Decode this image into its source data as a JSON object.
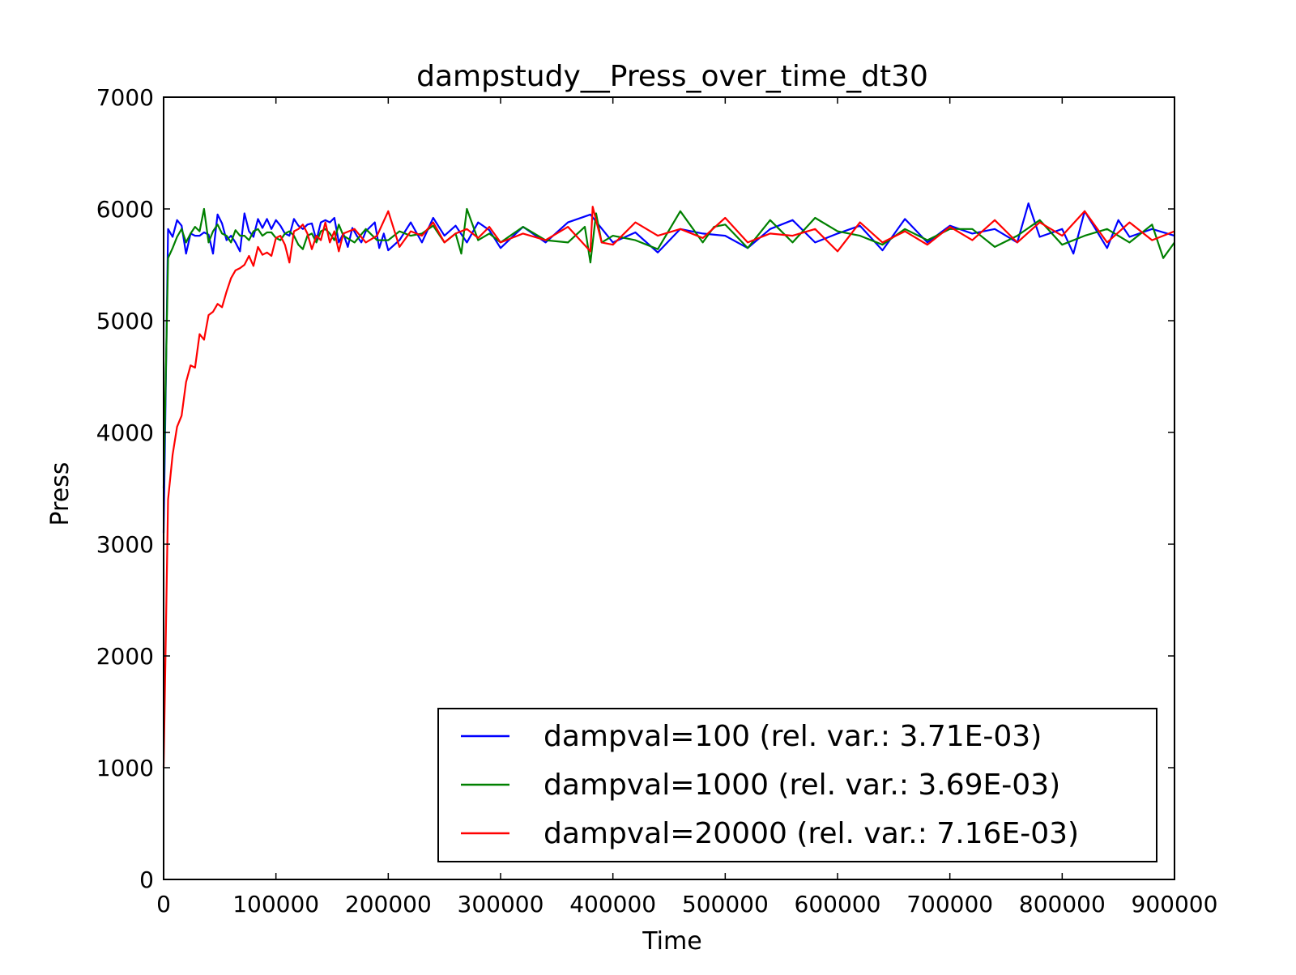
{
  "chart_data": {
    "type": "line",
    "title": "dampstudy__Press_over_time_dt30",
    "xlabel": "Time",
    "ylabel": "Press",
    "xlim": [
      0,
      900000
    ],
    "ylim": [
      0,
      7000
    ],
    "xticks": [
      0,
      100000,
      200000,
      300000,
      400000,
      500000,
      600000,
      700000,
      800000,
      900000
    ],
    "yticks": [
      0,
      1000,
      2000,
      3000,
      4000,
      5000,
      6000,
      7000
    ],
    "grid": false,
    "legend_position": "lower-right",
    "series": [
      {
        "name": "dampval=100 (rel. var.: 3.71E-03)",
        "color": "#0000ff",
        "x": [
          0,
          4000,
          8000,
          12000,
          16000,
          20000,
          24000,
          28000,
          32000,
          36000,
          40000,
          44000,
          48000,
          52000,
          56000,
          60000,
          64000,
          68000,
          72000,
          76000,
          80000,
          84000,
          88000,
          92000,
          96000,
          100000,
          104000,
          108000,
          112000,
          116000,
          120000,
          124000,
          128000,
          132000,
          136000,
          140000,
          144000,
          148000,
          152000,
          156000,
          160000,
          164000,
          168000,
          172000,
          176000,
          180000,
          184000,
          188000,
          192000,
          196000,
          200000,
          210000,
          220000,
          230000,
          240000,
          250000,
          260000,
          270000,
          280000,
          290000,
          300000,
          320000,
          340000,
          360000,
          380000,
          400000,
          420000,
          440000,
          460000,
          480000,
          500000,
          520000,
          540000,
          560000,
          580000,
          600000,
          620000,
          640000,
          660000,
          680000,
          700000,
          720000,
          740000,
          760000,
          770000,
          780000,
          800000,
          810000,
          820000,
          840000,
          850000,
          860000,
          880000,
          900000
        ],
        "y": [
          3100,
          5820,
          5750,
          5900,
          5850,
          5600,
          5780,
          5760,
          5760,
          5790,
          5770,
          5600,
          5950,
          5870,
          5720,
          5760,
          5700,
          5620,
          5960,
          5800,
          5750,
          5910,
          5830,
          5910,
          5820,
          5900,
          5850,
          5780,
          5760,
          5910,
          5850,
          5820,
          5860,
          5870,
          5720,
          5880,
          5900,
          5880,
          5920,
          5700,
          5780,
          5660,
          5830,
          5760,
          5700,
          5800,
          5840,
          5880,
          5650,
          5780,
          5630,
          5720,
          5880,
          5700,
          5920,
          5760,
          5850,
          5700,
          5880,
          5810,
          5650,
          5840,
          5700,
          5880,
          5950,
          5700,
          5790,
          5610,
          5820,
          5780,
          5760,
          5650,
          5820,
          5900,
          5700,
          5780,
          5850,
          5630,
          5910,
          5700,
          5850,
          5780,
          5820,
          5700,
          6050,
          5750,
          5820,
          5600,
          5980,
          5650,
          5900,
          5750,
          5820,
          5760
        ]
      },
      {
        "name": "dampval=1000 (rel. var.: 3.69E-03)",
        "color": "#008000",
        "x": [
          0,
          4000,
          8000,
          12000,
          16000,
          20000,
          24000,
          28000,
          32000,
          36000,
          40000,
          44000,
          48000,
          52000,
          56000,
          60000,
          64000,
          68000,
          72000,
          76000,
          80000,
          84000,
          88000,
          92000,
          96000,
          100000,
          104000,
          108000,
          112000,
          116000,
          120000,
          124000,
          128000,
          132000,
          136000,
          140000,
          144000,
          148000,
          152000,
          156000,
          160000,
          170000,
          180000,
          190000,
          200000,
          210000,
          220000,
          230000,
          240000,
          250000,
          260000,
          265000,
          270000,
          280000,
          290000,
          300000,
          320000,
          340000,
          360000,
          375000,
          380000,
          385000,
          390000,
          400000,
          420000,
          440000,
          460000,
          480000,
          490000,
          500000,
          520000,
          540000,
          560000,
          580000,
          600000,
          620000,
          640000,
          660000,
          680000,
          700000,
          720000,
          740000,
          760000,
          780000,
          800000,
          820000,
          840000,
          860000,
          880000,
          890000,
          900000
        ],
        "y": [
          3500,
          5560,
          5650,
          5750,
          5820,
          5700,
          5780,
          5840,
          5800,
          6000,
          5700,
          5800,
          5860,
          5780,
          5760,
          5700,
          5810,
          5760,
          5760,
          5720,
          5800,
          5820,
          5760,
          5790,
          5790,
          5740,
          5720,
          5780,
          5800,
          5760,
          5680,
          5640,
          5760,
          5780,
          5700,
          5800,
          5820,
          5780,
          5720,
          5860,
          5760,
          5700,
          5820,
          5720,
          5720,
          5800,
          5760,
          5780,
          5850,
          5700,
          5780,
          5600,
          6000,
          5720,
          5780,
          5700,
          5840,
          5720,
          5700,
          5840,
          5520,
          5960,
          5700,
          5760,
          5720,
          5640,
          5980,
          5700,
          5840,
          5860,
          5650,
          5900,
          5700,
          5920,
          5800,
          5760,
          5680,
          5820,
          5720,
          5820,
          5820,
          5660,
          5760,
          5900,
          5680,
          5760,
          5820,
          5700,
          5860,
          5560,
          5700
        ]
      },
      {
        "name": "dampval=20000 (rel. var.: 7.16E-03)",
        "color": "#ff0000",
        "x": [
          0,
          4000,
          8000,
          12000,
          16000,
          20000,
          24000,
          28000,
          32000,
          36000,
          40000,
          44000,
          48000,
          52000,
          56000,
          60000,
          64000,
          68000,
          72000,
          76000,
          80000,
          84000,
          88000,
          92000,
          96000,
          100000,
          104000,
          108000,
          112000,
          116000,
          120000,
          124000,
          128000,
          132000,
          136000,
          140000,
          144000,
          148000,
          152000,
          156000,
          160000,
          170000,
          180000,
          190000,
          200000,
          210000,
          220000,
          230000,
          240000,
          250000,
          260000,
          270000,
          280000,
          290000,
          300000,
          320000,
          340000,
          360000,
          380000,
          382000,
          390000,
          400000,
          420000,
          440000,
          460000,
          480000,
          500000,
          520000,
          540000,
          560000,
          580000,
          600000,
          620000,
          640000,
          660000,
          680000,
          700000,
          720000,
          740000,
          760000,
          780000,
          800000,
          820000,
          840000,
          860000,
          880000,
          900000
        ],
        "y": [
          1000,
          3400,
          3800,
          4050,
          4150,
          4450,
          4600,
          4580,
          4880,
          4830,
          5050,
          5080,
          5150,
          5120,
          5260,
          5380,
          5450,
          5470,
          5500,
          5580,
          5490,
          5660,
          5590,
          5610,
          5580,
          5740,
          5760,
          5680,
          5520,
          5800,
          5820,
          5860,
          5780,
          5640,
          5760,
          5720,
          5880,
          5700,
          5800,
          5620,
          5780,
          5820,
          5700,
          5760,
          5980,
          5660,
          5800,
          5760,
          5880,
          5700,
          5780,
          5820,
          5740,
          5840,
          5700,
          5780,
          5720,
          5840,
          5620,
          6020,
          5700,
          5680,
          5880,
          5760,
          5820,
          5740,
          5920,
          5700,
          5780,
          5760,
          5820,
          5620,
          5880,
          5700,
          5800,
          5680,
          5840,
          5720,
          5900,
          5700,
          5880,
          5760,
          5980,
          5700,
          5880,
          5720,
          5800
        ]
      }
    ]
  }
}
